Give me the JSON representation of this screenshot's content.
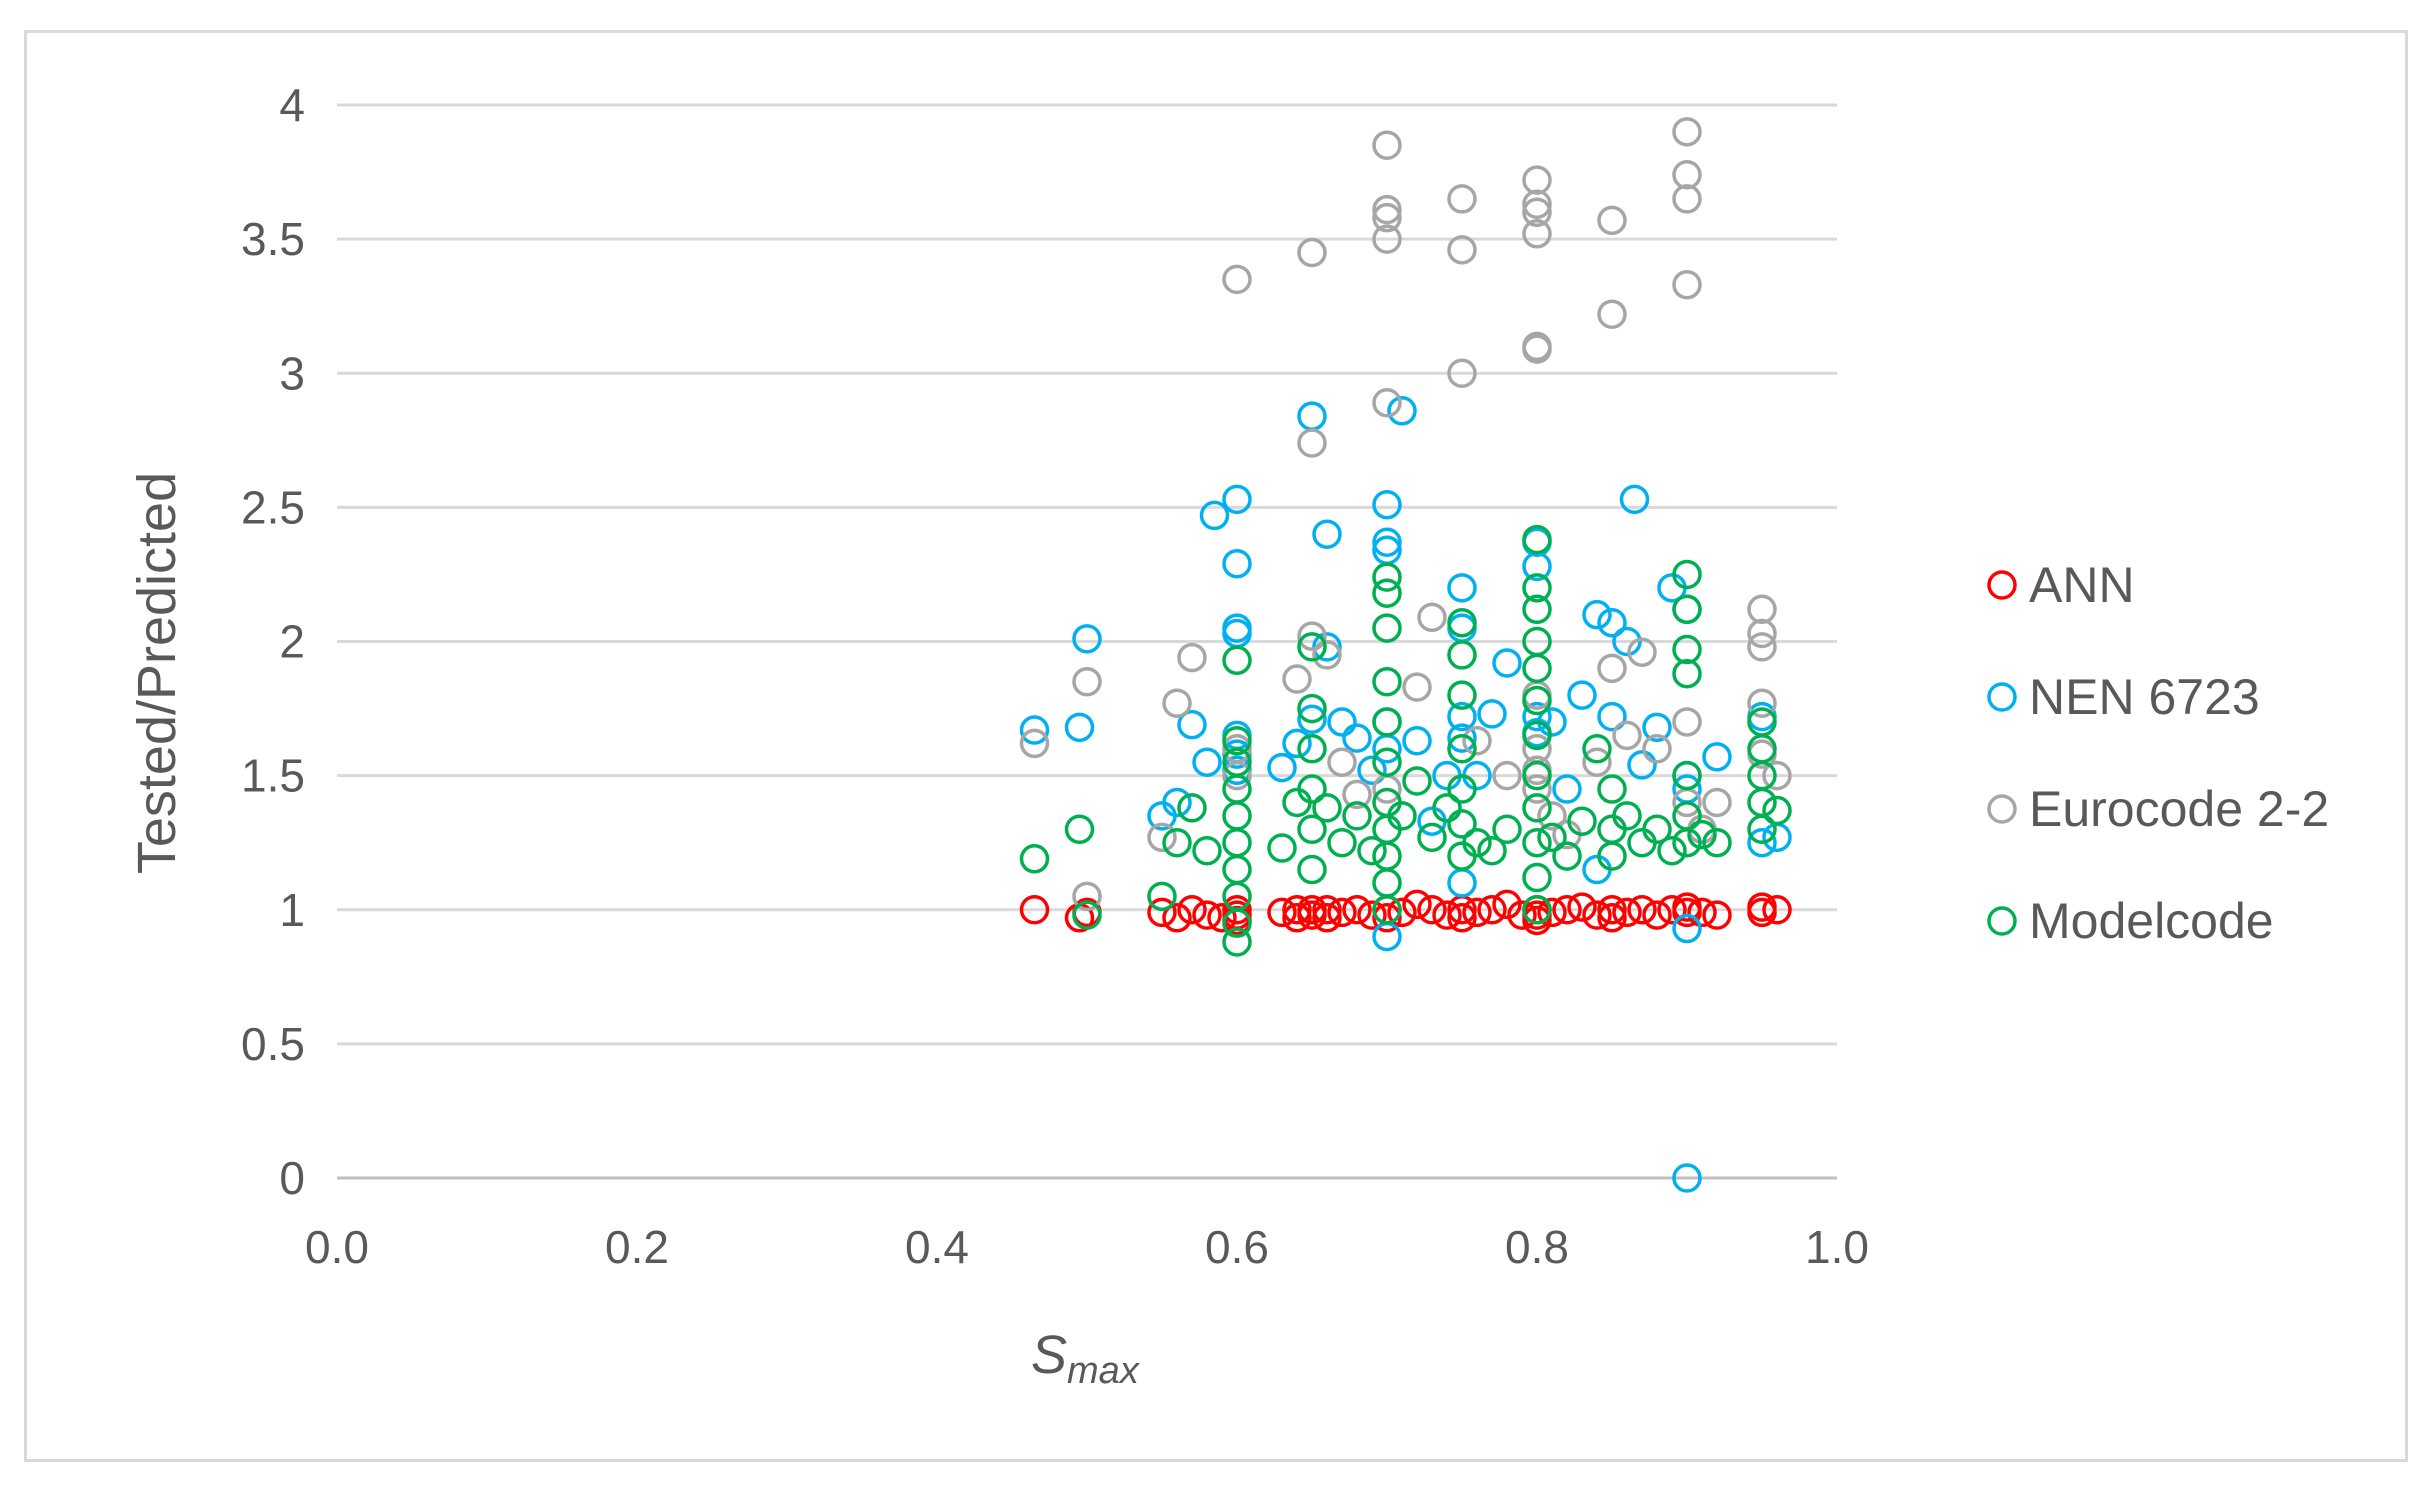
{
  "chart_data": {
    "type": "scatter",
    "title": "",
    "xlabel": "S",
    "xlabel_sub": "max",
    "ylabel": "Tested/Predicted",
    "xlim": [
      0.0,
      1.0
    ],
    "ylim": [
      0,
      4
    ],
    "xticks": [
      "0.0",
      "0.2",
      "0.4",
      "0.6",
      "0.8",
      "1.0"
    ],
    "yticks": [
      "0",
      "0.5",
      "1",
      "1.5",
      "2",
      "2.5",
      "3",
      "3.5",
      "4"
    ],
    "grid": "horizontal",
    "legend_position": "right",
    "marker": "hollow-circle",
    "series": [
      {
        "name": "ANN",
        "color": "#ff0000",
        "points": [
          [
            0.465,
            1.0
          ],
          [
            0.495,
            0.97
          ],
          [
            0.5,
            0.99
          ],
          [
            0.55,
            0.99
          ],
          [
            0.56,
            0.97
          ],
          [
            0.57,
            1.0
          ],
          [
            0.58,
            0.98
          ],
          [
            0.59,
            0.97
          ],
          [
            0.6,
            1.0
          ],
          [
            0.6,
            0.98
          ],
          [
            0.6,
            0.96
          ],
          [
            0.63,
            0.99
          ],
          [
            0.64,
            1.0
          ],
          [
            0.64,
            0.97
          ],
          [
            0.65,
            0.98
          ],
          [
            0.65,
            1.0
          ],
          [
            0.66,
            0.97
          ],
          [
            0.66,
            1.0
          ],
          [
            0.67,
            0.99
          ],
          [
            0.68,
            1.0
          ],
          [
            0.69,
            0.98
          ],
          [
            0.7,
            1.0
          ],
          [
            0.7,
            0.97
          ],
          [
            0.71,
            0.99
          ],
          [
            0.72,
            1.02
          ],
          [
            0.73,
            1.0
          ],
          [
            0.74,
            0.98
          ],
          [
            0.75,
            1.0
          ],
          [
            0.75,
            0.97
          ],
          [
            0.76,
            0.99
          ],
          [
            0.77,
            1.0
          ],
          [
            0.78,
            1.02
          ],
          [
            0.79,
            0.98
          ],
          [
            0.8,
            1.0
          ],
          [
            0.8,
            0.96
          ],
          [
            0.8,
            0.98
          ],
          [
            0.81,
            0.99
          ],
          [
            0.82,
            1.0
          ],
          [
            0.83,
            1.01
          ],
          [
            0.84,
            0.98
          ],
          [
            0.85,
            1.0
          ],
          [
            0.85,
            0.97
          ],
          [
            0.86,
            0.99
          ],
          [
            0.87,
            1.0
          ],
          [
            0.88,
            0.98
          ],
          [
            0.89,
            1.0
          ],
          [
            0.9,
            0.99
          ],
          [
            0.9,
            1.01
          ],
          [
            0.91,
            0.99
          ],
          [
            0.92,
            0.98
          ],
          [
            0.95,
            1.01
          ],
          [
            0.95,
            0.99
          ],
          [
            0.96,
            1.0
          ]
        ]
      },
      {
        "name": "NEN 6723",
        "color": "#00b0f0",
        "points": [
          [
            0.465,
            1.67
          ],
          [
            0.495,
            1.68
          ],
          [
            0.5,
            2.01
          ],
          [
            0.55,
            1.35
          ],
          [
            0.56,
            1.4
          ],
          [
            0.57,
            1.69
          ],
          [
            0.58,
            1.55
          ],
          [
            0.585,
            2.47
          ],
          [
            0.6,
            2.53
          ],
          [
            0.6,
            2.29
          ],
          [
            0.6,
            2.05
          ],
          [
            0.6,
            2.03
          ],
          [
            0.6,
            1.65
          ],
          [
            0.6,
            1.58
          ],
          [
            0.6,
            1.52
          ],
          [
            0.63,
            1.53
          ],
          [
            0.64,
            1.62
          ],
          [
            0.65,
            2.84
          ],
          [
            0.65,
            1.71
          ],
          [
            0.66,
            2.4
          ],
          [
            0.66,
            1.98
          ],
          [
            0.67,
            1.7
          ],
          [
            0.68,
            1.64
          ],
          [
            0.69,
            1.52
          ],
          [
            0.7,
            2.51
          ],
          [
            0.7,
            2.37
          ],
          [
            0.7,
            2.34
          ],
          [
            0.7,
            1.7
          ],
          [
            0.7,
            1.6
          ],
          [
            0.7,
            0.9
          ],
          [
            0.71,
            2.86
          ],
          [
            0.72,
            1.63
          ],
          [
            0.73,
            1.33
          ],
          [
            0.74,
            1.5
          ],
          [
            0.75,
            2.2
          ],
          [
            0.75,
            2.05
          ],
          [
            0.75,
            1.72
          ],
          [
            0.75,
            1.64
          ],
          [
            0.75,
            1.1
          ],
          [
            0.76,
            1.5
          ],
          [
            0.77,
            1.73
          ],
          [
            0.78,
            1.92
          ],
          [
            0.8,
            2.37
          ],
          [
            0.8,
            2.28
          ],
          [
            0.8,
            1.72
          ],
          [
            0.8,
            1.66
          ],
          [
            0.81,
            1.7
          ],
          [
            0.82,
            1.45
          ],
          [
            0.83,
            1.8
          ],
          [
            0.84,
            2.1
          ],
          [
            0.84,
            1.15
          ],
          [
            0.85,
            2.07
          ],
          [
            0.85,
            1.72
          ],
          [
            0.86,
            2.0
          ],
          [
            0.865,
            2.53
          ],
          [
            0.87,
            1.54
          ],
          [
            0.88,
            1.68
          ],
          [
            0.89,
            2.2
          ],
          [
            0.9,
            2.12
          ],
          [
            0.9,
            1.5
          ],
          [
            0.9,
            1.45
          ],
          [
            0.9,
            0.93
          ],
          [
            0.9,
            0.0
          ],
          [
            0.92,
            1.57
          ],
          [
            0.95,
            1.72
          ],
          [
            0.95,
            1.25
          ],
          [
            0.96,
            1.27
          ]
        ]
      },
      {
        "name": "Eurocode 2-2",
        "color": "#a6a6a6",
        "points": [
          [
            0.465,
            1.62
          ],
          [
            0.5,
            1.85
          ],
          [
            0.5,
            1.05
          ],
          [
            0.55,
            1.27
          ],
          [
            0.56,
            1.77
          ],
          [
            0.57,
            1.94
          ],
          [
            0.6,
            3.35
          ],
          [
            0.6,
            1.6
          ],
          [
            0.6,
            1.5
          ],
          [
            0.64,
            1.86
          ],
          [
            0.65,
            3.45
          ],
          [
            0.65,
            2.74
          ],
          [
            0.65,
            2.02
          ],
          [
            0.66,
            1.95
          ],
          [
            0.67,
            1.55
          ],
          [
            0.68,
            1.43
          ],
          [
            0.7,
            3.85
          ],
          [
            0.7,
            3.61
          ],
          [
            0.7,
            3.58
          ],
          [
            0.7,
            3.5
          ],
          [
            0.7,
            2.89
          ],
          [
            0.7,
            1.45
          ],
          [
            0.72,
            1.83
          ],
          [
            0.73,
            2.09
          ],
          [
            0.75,
            3.65
          ],
          [
            0.75,
            3.46
          ],
          [
            0.75,
            3.0
          ],
          [
            0.76,
            1.63
          ],
          [
            0.78,
            1.5
          ],
          [
            0.8,
            3.72
          ],
          [
            0.8,
            3.63
          ],
          [
            0.8,
            3.6
          ],
          [
            0.8,
            3.52
          ],
          [
            0.8,
            3.1
          ],
          [
            0.8,
            3.09
          ],
          [
            0.8,
            1.8
          ],
          [
            0.8,
            1.6
          ],
          [
            0.8,
            1.52
          ],
          [
            0.8,
            1.45
          ],
          [
            0.81,
            1.35
          ],
          [
            0.82,
            1.28
          ],
          [
            0.84,
            1.55
          ],
          [
            0.85,
            3.57
          ],
          [
            0.85,
            3.22
          ],
          [
            0.85,
            1.9
          ],
          [
            0.86,
            1.65
          ],
          [
            0.87,
            1.96
          ],
          [
            0.88,
            1.6
          ],
          [
            0.9,
            3.9
          ],
          [
            0.9,
            3.74
          ],
          [
            0.9,
            3.65
          ],
          [
            0.9,
            3.33
          ],
          [
            0.9,
            1.7
          ],
          [
            0.9,
            1.4
          ],
          [
            0.91,
            1.3
          ],
          [
            0.92,
            1.4
          ],
          [
            0.95,
            2.12
          ],
          [
            0.95,
            2.03
          ],
          [
            0.95,
            1.98
          ],
          [
            0.95,
            1.77
          ],
          [
            0.95,
            1.58
          ],
          [
            0.96,
            1.5
          ]
        ]
      },
      {
        "name": "Modelcode",
        "color": "#00b050",
        "points": [
          [
            0.465,
            1.19
          ],
          [
            0.495,
            1.3
          ],
          [
            0.5,
            0.98
          ],
          [
            0.55,
            1.05
          ],
          [
            0.56,
            1.25
          ],
          [
            0.57,
            1.38
          ],
          [
            0.58,
            1.22
          ],
          [
            0.6,
            1.93
          ],
          [
            0.6,
            1.63
          ],
          [
            0.6,
            1.55
          ],
          [
            0.6,
            1.45
          ],
          [
            0.6,
            1.35
          ],
          [
            0.6,
            1.25
          ],
          [
            0.6,
            1.15
          ],
          [
            0.6,
            1.05
          ],
          [
            0.6,
            0.95
          ],
          [
            0.6,
            0.88
          ],
          [
            0.63,
            1.23
          ],
          [
            0.64,
            1.4
          ],
          [
            0.65,
            1.98
          ],
          [
            0.65,
            1.75
          ],
          [
            0.65,
            1.6
          ],
          [
            0.65,
            1.45
          ],
          [
            0.65,
            1.3
          ],
          [
            0.65,
            1.15
          ],
          [
            0.66,
            1.38
          ],
          [
            0.67,
            1.25
          ],
          [
            0.68,
            1.35
          ],
          [
            0.69,
            1.22
          ],
          [
            0.7,
            2.24
          ],
          [
            0.7,
            2.18
          ],
          [
            0.7,
            2.05
          ],
          [
            0.7,
            1.85
          ],
          [
            0.7,
            1.7
          ],
          [
            0.7,
            1.55
          ],
          [
            0.7,
            1.4
          ],
          [
            0.7,
            1.3
          ],
          [
            0.7,
            1.2
          ],
          [
            0.7,
            1.1
          ],
          [
            0.7,
            1.0
          ],
          [
            0.71,
            1.35
          ],
          [
            0.72,
            1.48
          ],
          [
            0.73,
            1.27
          ],
          [
            0.74,
            1.38
          ],
          [
            0.75,
            2.07
          ],
          [
            0.75,
            1.95
          ],
          [
            0.75,
            1.8
          ],
          [
            0.75,
            1.6
          ],
          [
            0.75,
            1.45
          ],
          [
            0.75,
            1.32
          ],
          [
            0.75,
            1.2
          ],
          [
            0.76,
            1.25
          ],
          [
            0.77,
            1.22
          ],
          [
            0.78,
            1.3
          ],
          [
            0.8,
            2.38
          ],
          [
            0.8,
            2.2
          ],
          [
            0.8,
            2.12
          ],
          [
            0.8,
            2.0
          ],
          [
            0.8,
            1.9
          ],
          [
            0.8,
            1.78
          ],
          [
            0.8,
            1.65
          ],
          [
            0.8,
            1.5
          ],
          [
            0.8,
            1.38
          ],
          [
            0.8,
            1.25
          ],
          [
            0.8,
            1.12
          ],
          [
            0.8,
            1.0
          ],
          [
            0.81,
            1.27
          ],
          [
            0.82,
            1.2
          ],
          [
            0.83,
            1.33
          ],
          [
            0.84,
            1.6
          ],
          [
            0.85,
            1.45
          ],
          [
            0.85,
            1.3
          ],
          [
            0.85,
            1.2
          ],
          [
            0.86,
            1.35
          ],
          [
            0.87,
            1.25
          ],
          [
            0.88,
            1.3
          ],
          [
            0.89,
            1.22
          ],
          [
            0.9,
            2.25
          ],
          [
            0.9,
            2.12
          ],
          [
            0.9,
            1.97
          ],
          [
            0.9,
            1.88
          ],
          [
            0.9,
            1.5
          ],
          [
            0.9,
            1.35
          ],
          [
            0.9,
            1.25
          ],
          [
            0.91,
            1.28
          ],
          [
            0.92,
            1.25
          ],
          [
            0.95,
            1.7
          ],
          [
            0.95,
            1.6
          ],
          [
            0.95,
            1.5
          ],
          [
            0.95,
            1.4
          ],
          [
            0.95,
            1.3
          ],
          [
            0.96,
            1.37
          ]
        ]
      }
    ]
  }
}
